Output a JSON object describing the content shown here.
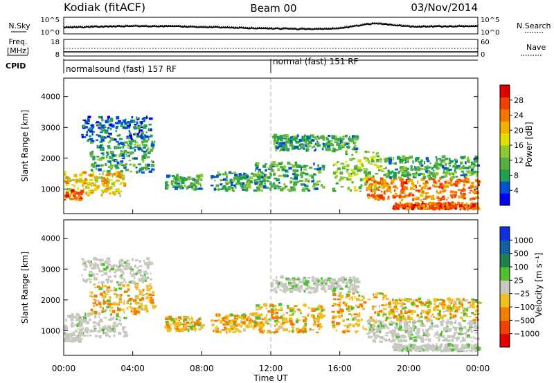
{
  "header": {
    "station": "Kodiak (fitACF)",
    "beam": "Beam 00",
    "date": "03/Nov/2014"
  },
  "top_panels": {
    "nsky_label": "N.Sky",
    "nsearch_label": "N.Search",
    "noise_ticks_left": [
      "10^5",
      "10^0"
    ],
    "noise_ticks_right": [
      "10^5",
      "10^0"
    ],
    "freq_label": "Freq.",
    "freq_unit": "[MHz]",
    "freq_ticks": [
      "18",
      "8"
    ],
    "nave_label": "Nave",
    "nave_ticks": [
      "60",
      "0"
    ],
    "cpid_label": "CPID",
    "cpid_segments": [
      {
        "label": "normalsound (fast) 157 RF",
        "start_hour": 0
      },
      {
        "label": "normal (fast) 151 RF",
        "start_hour": 12
      }
    ]
  },
  "chart_data": [
    {
      "type": "heatmap",
      "panel": "power",
      "ylabel": "Slant Range [km]",
      "yticks": [
        1000,
        2000,
        3000,
        4000
      ],
      "ylim": [
        200,
        4600
      ],
      "xlim": [
        0,
        24
      ],
      "colorbar": {
        "label": "Power [dB]",
        "ticks": [
          "4",
          "8",
          "12",
          "16",
          "20",
          "24",
          "28"
        ],
        "range": [
          0,
          32
        ],
        "colors": [
          "#0000ff",
          "#0050d0",
          "#1fa050",
          "#55b040",
          "#90c830",
          "#e0e000",
          "#f0b000",
          "#f07800",
          "#f04000",
          "#e00000"
        ]
      }
    },
    {
      "type": "heatmap",
      "panel": "velocity",
      "ylabel": "Slant Range [km]",
      "yticks": [
        1000,
        2000,
        3000,
        4000
      ],
      "ylim": [
        200,
        4600
      ],
      "xlim": [
        0,
        24
      ],
      "colorbar": {
        "label": "Velocity [m s⁻¹]",
        "ticks": [
          "1000",
          "500",
          "100",
          "25",
          "−25",
          "−100",
          "−500",
          "−1000"
        ],
        "colors": [
          "#1030e0",
          "#1060a0",
          "#208050",
          "#50c030",
          "#c8c8c0",
          "#f0c020",
          "#f08000",
          "#f04000",
          "#e00000"
        ]
      }
    }
  ],
  "time_axis": {
    "label": "Time UT",
    "ticks": [
      "00:00",
      "04:00",
      "08:00",
      "12:00",
      "16:00",
      "20:00",
      "00:00"
    ],
    "tick_hours": [
      0,
      4,
      8,
      12,
      16,
      20,
      24
    ]
  },
  "echo_regions": [
    {
      "t0": 0.0,
      "t1": 3.5,
      "r0": 750,
      "r1": 1500,
      "p": 19
    },
    {
      "t0": 0.0,
      "t1": 1.0,
      "r0": 600,
      "r1": 900,
      "p": 26
    },
    {
      "t0": 1.5,
      "t1": 5.2,
      "r0": 1500,
      "r1": 2500,
      "p": 9
    },
    {
      "t0": 1.0,
      "t1": 5.0,
      "r0": 2500,
      "r1": 3300,
      "p": 6
    },
    {
      "t0": 5.8,
      "t1": 8.0,
      "r0": 950,
      "r1": 1400,
      "p": 10
    },
    {
      "t0": 8.5,
      "t1": 11.5,
      "r0": 900,
      "r1": 1500,
      "p": 10
    },
    {
      "t0": 11.0,
      "t1": 15.0,
      "r0": 900,
      "r1": 1800,
      "p": 10
    },
    {
      "t0": 12.0,
      "t1": 17.0,
      "r0": 2200,
      "r1": 2700,
      "p": 9
    },
    {
      "t0": 15.5,
      "t1": 18.5,
      "r0": 900,
      "r1": 2200,
      "p": 14
    },
    {
      "t0": 17.5,
      "t1": 24.0,
      "r0": 600,
      "r1": 1300,
      "p": 24
    },
    {
      "t0": 18.5,
      "t1": 24.0,
      "r0": 1300,
      "r1": 2000,
      "p": 10
    },
    {
      "t0": 19.0,
      "t1": 24.0,
      "r0": 300,
      "r1": 500,
      "p": 26
    }
  ]
}
